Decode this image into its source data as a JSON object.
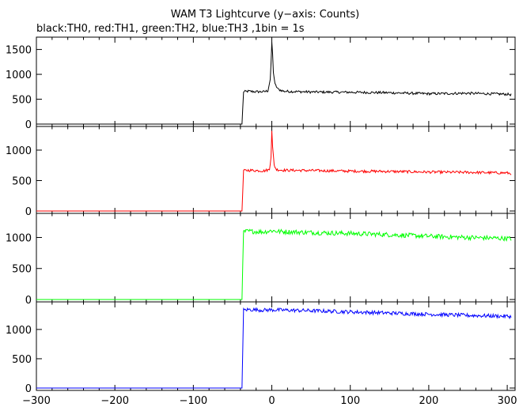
{
  "chart_data": {
    "type": "line",
    "title": "WAM T3 Lightcurve (y−axis: Counts)",
    "subtitle": "black:TH0, red:TH1, green:TH2, blue:TH3 ,1bin = 1s",
    "xlabel": "",
    "ylabel": "",
    "xlim": [
      -300,
      310
    ],
    "x_ticks": [
      -300,
      -200,
      -100,
      0,
      100,
      200,
      300
    ],
    "x_tick_labels": [
      "−300",
      "−200",
      "−100",
      "0",
      "100",
      "200",
      "300"
    ],
    "grid": false,
    "panels": [
      {
        "name": "TH0",
        "color": "#000000",
        "ylim": [
          0,
          1700
        ],
        "y_ticks": [
          0,
          500,
          1000,
          1500
        ],
        "points": [
          [
            -300,
            0
          ],
          [
            -38,
            0
          ],
          [
            -36,
            650
          ],
          [
            -30,
            660
          ],
          [
            -20,
            650
          ],
          [
            -10,
            650
          ],
          [
            -5,
            670
          ],
          [
            -2,
            900
          ],
          [
            -1,
            1200
          ],
          [
            0,
            1650
          ],
          [
            1,
            1400
          ],
          [
            2,
            1050
          ],
          [
            4,
            800
          ],
          [
            8,
            700
          ],
          [
            15,
            660
          ],
          [
            50,
            645
          ],
          [
            100,
            640
          ],
          [
            150,
            630
          ],
          [
            200,
            610
          ],
          [
            250,
            620
          ],
          [
            300,
            600
          ],
          [
            305,
            590
          ]
        ],
        "noise": 25
      },
      {
        "name": "TH1",
        "color": "#ff0000",
        "ylim": [
          0,
          1350
        ],
        "y_ticks": [
          0,
          500,
          1000
        ],
        "points": [
          [
            -300,
            0
          ],
          [
            -38,
            0
          ],
          [
            -36,
            660
          ],
          [
            -30,
            670
          ],
          [
            -20,
            665
          ],
          [
            -10,
            660
          ],
          [
            -3,
            680
          ],
          [
            -1,
            900
          ],
          [
            0,
            1330
          ],
          [
            1,
            1050
          ],
          [
            3,
            750
          ],
          [
            6,
            680
          ],
          [
            15,
            670
          ],
          [
            50,
            665
          ],
          [
            100,
            655
          ],
          [
            150,
            650
          ],
          [
            200,
            640
          ],
          [
            250,
            635
          ],
          [
            300,
            625
          ],
          [
            305,
            615
          ]
        ],
        "noise": 22
      },
      {
        "name": "TH2",
        "color": "#00ff00",
        "ylim": [
          0,
          1350
        ],
        "y_ticks": [
          0,
          500,
          1000
        ],
        "points": [
          [
            -300,
            0
          ],
          [
            -38,
            0
          ],
          [
            -36,
            1090
          ],
          [
            -30,
            1100
          ],
          [
            -20,
            1095
          ],
          [
            -10,
            1090
          ],
          [
            0,
            1110
          ],
          [
            10,
            1095
          ],
          [
            50,
            1080
          ],
          [
            100,
            1065
          ],
          [
            150,
            1045
          ],
          [
            200,
            1020
          ],
          [
            250,
            1000
          ],
          [
            300,
            985
          ],
          [
            305,
            980
          ]
        ],
        "noise": 38
      },
      {
        "name": "TH3",
        "color": "#0000ff",
        "ylim": [
          0,
          1430
        ],
        "y_ticks": [
          0,
          500,
          1000
        ],
        "points": [
          [
            -300,
            0
          ],
          [
            -38,
            0
          ],
          [
            -36,
            1330
          ],
          [
            -30,
            1340
          ],
          [
            -20,
            1335
          ],
          [
            -10,
            1330
          ],
          [
            0,
            1335
          ],
          [
            50,
            1320
          ],
          [
            100,
            1300
          ],
          [
            150,
            1280
          ],
          [
            200,
            1260
          ],
          [
            250,
            1240
          ],
          [
            300,
            1225
          ],
          [
            305,
            1220
          ]
        ],
        "noise": 32
      }
    ]
  }
}
